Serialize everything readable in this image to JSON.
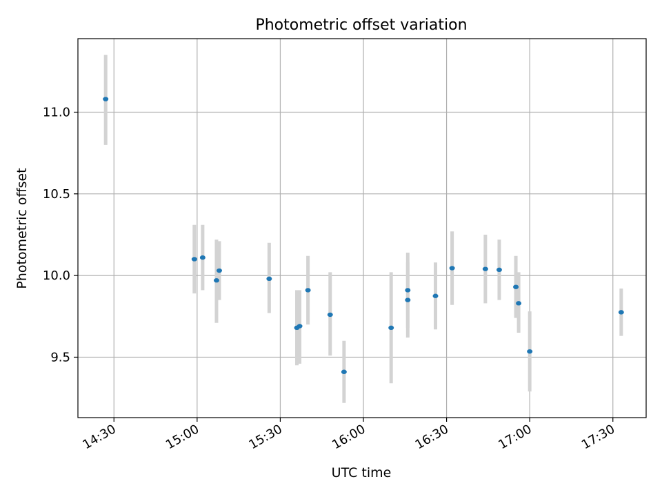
{
  "chart_data": {
    "type": "scatter",
    "title": "Photometric offset variation",
    "xlabel": "UTC time",
    "ylabel": "Photometric offset",
    "x_tick_labels": [
      "14:30",
      "15:00",
      "15:30",
      "16:00",
      "16:30",
      "17:00",
      "17:30"
    ],
    "y_tick_labels": [
      "9.5",
      "10.0",
      "10.5",
      "11.0"
    ],
    "xlim": [
      "14:17",
      "17:42"
    ],
    "ylim": [
      9.13,
      11.45
    ],
    "grid": true,
    "colors": {
      "point": "#1f77b4",
      "errorbar": "#d3d3d3",
      "grid": "#b0b0b0"
    },
    "series": [
      {
        "x": [
          "14:27",
          "14:59",
          "15:02",
          "15:07",
          "15:08",
          "15:26",
          "15:36",
          "15:37",
          "15:40",
          "15:48",
          "15:53",
          "16:10",
          "16:16",
          "16:16",
          "16:26",
          "16:32",
          "16:44",
          "16:49",
          "16:55",
          "16:56",
          "17:00",
          "17:33"
        ],
        "y": [
          11.08,
          10.1,
          10.11,
          9.97,
          10.03,
          9.98,
          9.68,
          9.69,
          9.91,
          9.76,
          9.41,
          9.68,
          9.85,
          9.91,
          9.875,
          10.045,
          10.04,
          10.035,
          9.93,
          9.83,
          9.535,
          9.775
        ],
        "yerr_low": [
          10.8,
          9.89,
          9.91,
          9.71,
          9.85,
          9.77,
          9.45,
          9.46,
          9.7,
          9.51,
          9.22,
          9.34,
          9.62,
          9.68,
          9.67,
          9.82,
          9.83,
          9.85,
          9.74,
          9.65,
          9.29,
          9.63
        ],
        "yerr_high": [
          11.35,
          10.31,
          10.31,
          10.22,
          10.21,
          10.2,
          9.91,
          9.91,
          10.12,
          10.02,
          9.6,
          10.02,
          10.08,
          10.14,
          10.08,
          10.27,
          10.25,
          10.22,
          10.12,
          10.02,
          9.78,
          9.92
        ]
      }
    ]
  }
}
